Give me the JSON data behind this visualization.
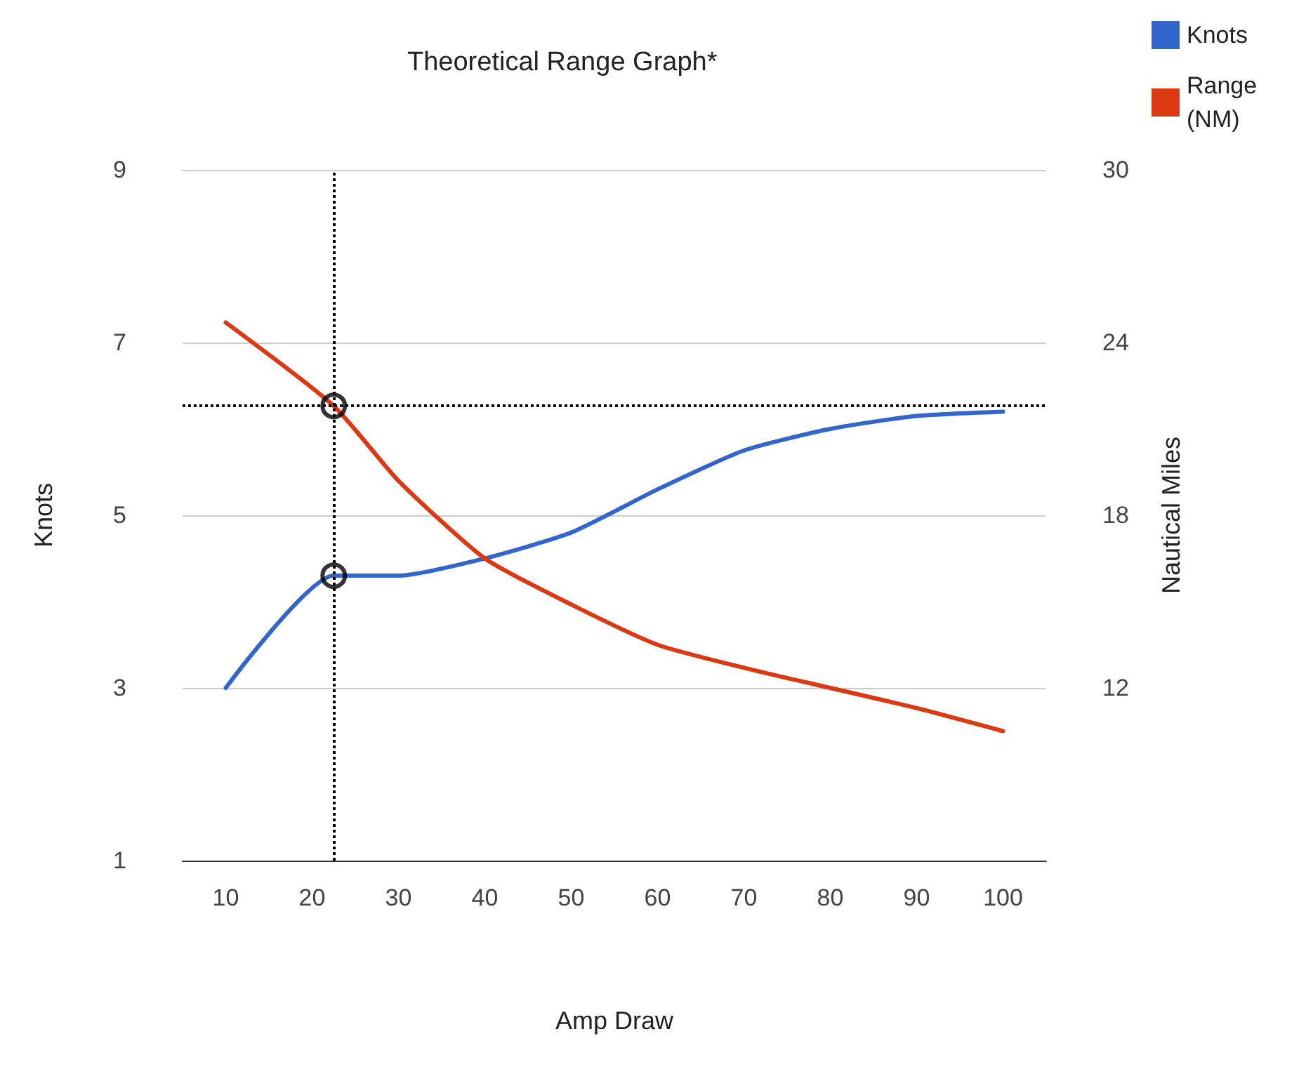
{
  "chart_data": {
    "type": "line",
    "title": "Theoretical Range Graph*",
    "xlabel": "Amp Draw",
    "ylabel": "Knots",
    "y2label": "Nautical Miles",
    "xlim": [
      5,
      105
    ],
    "xticks": [
      10,
      20,
      30,
      40,
      50,
      60,
      70,
      80,
      90,
      100
    ],
    "ylim": [
      1,
      9
    ],
    "yticks": [
      1,
      3,
      5,
      7,
      9
    ],
    "y2lim": [
      6,
      30
    ],
    "y2ticks": [
      12,
      18,
      24,
      30
    ],
    "grid": "y",
    "legend": "top right",
    "marker": "none",
    "line_style": "solid",
    "series": [
      {
        "name": "Knots",
        "color": "#3366cc",
        "x": [
          10,
          22.5,
          30,
          40,
          50,
          60,
          70,
          80,
          90,
          100
        ],
        "values": [
          3.0,
          4.3,
          4.3,
          4.5,
          4.8,
          5.3,
          5.75,
          6.0,
          6.15,
          6.2
        ]
      },
      {
        "name": "Range (NM)",
        "color": "#dc3912",
        "axis": "y2",
        "x": [
          10,
          22.5,
          30,
          40,
          50,
          60,
          70,
          80,
          90,
          100
        ],
        "values": [
          24.7,
          21.8,
          19.2,
          16.5,
          14.9,
          13.5,
          12.7,
          12.0,
          11.3,
          10.5
        ]
      },
      {
        "type": "scatter",
        "color": "#000000",
        "marker": "circle",
        "x": [
          22.5
        ],
        "values": [
          4.3
        ]
      },
      {
        "type": "scatter",
        "color": "#000000",
        "marker": "circle",
        "axis": "y2",
        "x": [
          22.5
        ],
        "values": [
          21.8
        ]
      }
    ],
    "ref_lines": [
      {
        "axis": "x",
        "value": 22.5,
        "color": "#000000",
        "line_style": "dotted"
      },
      {
        "axis": "y2",
        "value": 21.8,
        "color": "#000000",
        "line_style": "dotted"
      }
    ]
  }
}
